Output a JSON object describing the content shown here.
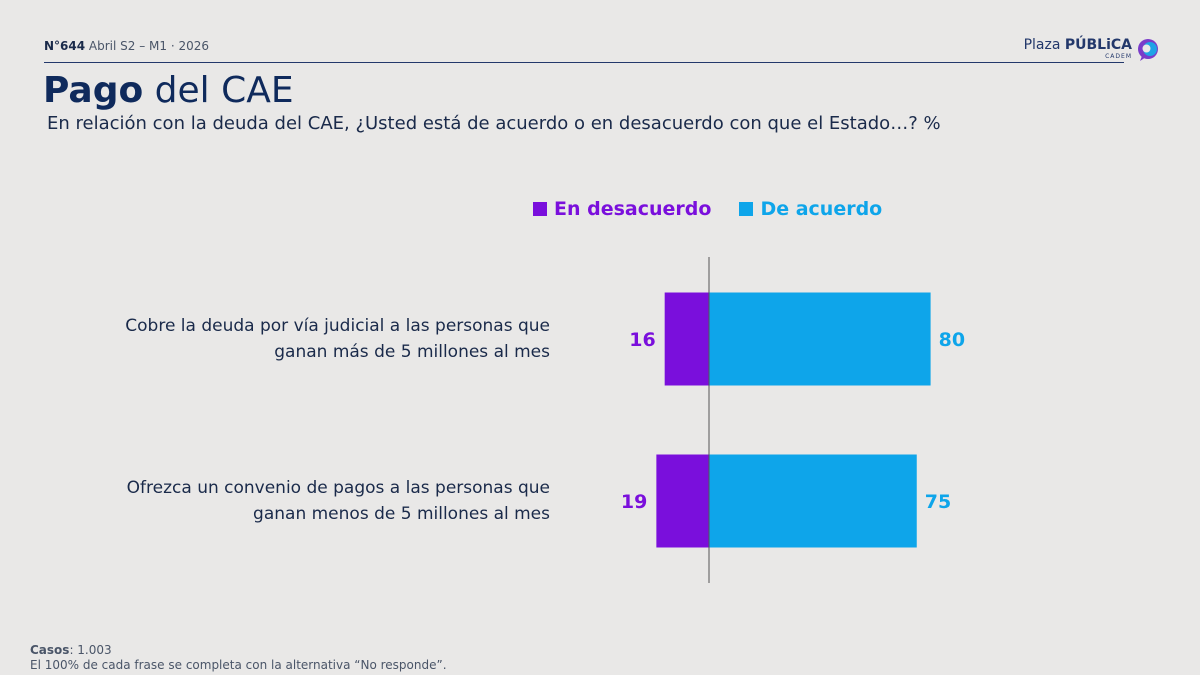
{
  "header": {
    "edition_number": "N°644",
    "edition_rest": "Abril S2 – M1 · 2026",
    "brand_plaza": "Plaza",
    "brand_publica": "PÚBLiCA",
    "brand_cadem": "CADEM"
  },
  "title": {
    "bold": "Pago",
    "rest": "del CAE"
  },
  "subtitle": "En relación con la deuda del CAE, ¿Usted está de acuerdo o en desacuerdo con que el Estado…? %",
  "colors": {
    "disagree": "#7a0fdc",
    "agree": "#0ea5ea",
    "axis": "#555555",
    "category_text": "#1a2a4a"
  },
  "chart_data": {
    "type": "bar",
    "orientation": "horizontal-diverging",
    "categories": [
      [
        "Cobre la deuda por vía judicial a las personas que",
        "ganan más de 5 millones al mes"
      ],
      [
        "Ofrezca un convenio de pagos a las personas que",
        "ganan menos de 5 millones al mes"
      ]
    ],
    "series": [
      {
        "name": "En desacuerdo",
        "values": [
          16,
          19
        ]
      },
      {
        "name": "De acuerdo",
        "values": [
          80,
          75
        ]
      }
    ],
    "legend_position": "top"
  },
  "footer": {
    "casos_label": "Casos",
    "casos_value": ": 1.003",
    "note": "El 100% de cada frase se completa con la alternativa “No responde”."
  }
}
